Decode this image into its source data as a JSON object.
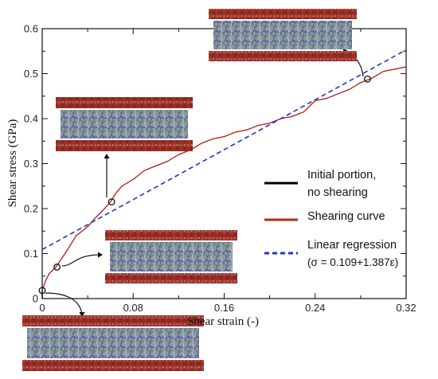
{
  "chart_data": {
    "type": "line",
    "xlabel": "Shear strain (-)",
    "ylabel": "Shear stress (GPa)",
    "xlim": [
      0,
      0.32
    ],
    "ylim": [
      0,
      0.6
    ],
    "x_ticks": [
      "0",
      "0.08",
      "0.16",
      "0.24",
      "0.32"
    ],
    "y_ticks": [
      "0",
      "0.1",
      "0.2",
      "0.3",
      "0.4",
      "0.5",
      "0.6"
    ],
    "grid": false,
    "legend_position": "right",
    "series": [
      {
        "name": "Initial portion,\nno shearing",
        "color": "#000000",
        "style": "solid",
        "points": [
          [
            0,
            0
          ],
          [
            0,
            0.018
          ]
        ]
      },
      {
        "name": "Shearing curve",
        "color": "#b22a1a",
        "style": "solid",
        "points": [
          [
            0,
            0.018
          ],
          [
            0.003,
            0.04
          ],
          [
            0.006,
            0.055
          ],
          [
            0.012,
            0.07
          ],
          [
            0.016,
            0.085
          ],
          [
            0.02,
            0.1
          ],
          [
            0.025,
            0.12
          ],
          [
            0.03,
            0.14
          ],
          [
            0.035,
            0.15
          ],
          [
            0.04,
            0.16
          ],
          [
            0.047,
            0.18
          ],
          [
            0.053,
            0.195
          ],
          [
            0.06,
            0.215
          ],
          [
            0.065,
            0.235
          ],
          [
            0.07,
            0.25
          ],
          [
            0.08,
            0.265
          ],
          [
            0.09,
            0.285
          ],
          [
            0.1,
            0.295
          ],
          [
            0.11,
            0.305
          ],
          [
            0.12,
            0.32
          ],
          [
            0.13,
            0.33
          ],
          [
            0.14,
            0.345
          ],
          [
            0.15,
            0.355
          ],
          [
            0.16,
            0.36
          ],
          [
            0.17,
            0.37
          ],
          [
            0.18,
            0.375
          ],
          [
            0.19,
            0.385
          ],
          [
            0.2,
            0.39
          ],
          [
            0.21,
            0.4
          ],
          [
            0.22,
            0.405
          ],
          [
            0.23,
            0.415
          ],
          [
            0.24,
            0.44
          ],
          [
            0.25,
            0.445
          ],
          [
            0.26,
            0.455
          ],
          [
            0.27,
            0.465
          ],
          [
            0.28,
            0.48
          ],
          [
            0.29,
            0.49
          ],
          [
            0.3,
            0.505
          ],
          [
            0.31,
            0.51
          ],
          [
            0.32,
            0.515
          ]
        ]
      },
      {
        "name": "Linear regression\n(σ = 0.109+1.387ε)",
        "color": "#2233cc",
        "style": "dashed",
        "intercept": 0.109,
        "slope": 1.387,
        "x_range": [
          0,
          0.32
        ]
      }
    ],
    "markers": [
      {
        "x": 0.0,
        "y": 0.018
      },
      {
        "x": 0.013,
        "y": 0.07
      },
      {
        "x": 0.061,
        "y": 0.215
      },
      {
        "x": 0.286,
        "y": 0.488
      }
    ],
    "insets": [
      {
        "label": "initial snapshot"
      },
      {
        "label": "early shearing snapshot"
      },
      {
        "label": "mid shearing snapshot"
      },
      {
        "label": "late shearing snapshot"
      }
    ]
  }
}
